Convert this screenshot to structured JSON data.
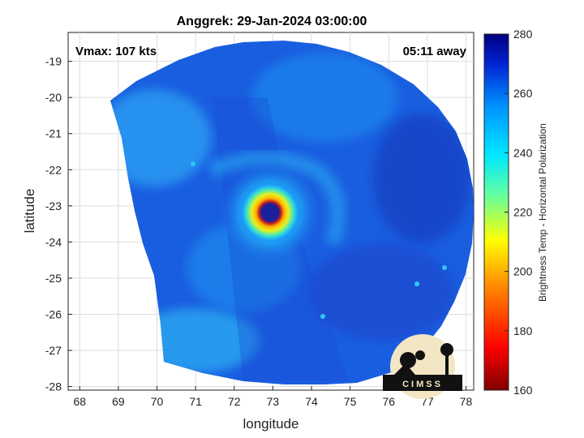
{
  "title": "Anggrek: 29-Jan-2024 03:00:00",
  "vmax_label": "Vmax: 107 kts",
  "time_label": "05:11 away",
  "logo_text": "CIMSS",
  "colors": {
    "cold_core": "#1a1f9a",
    "background_field": "#1450d8",
    "ring": "#22d0e0"
  },
  "chart_data": {
    "type": "heatmap",
    "xlabel": "longitude",
    "ylabel": "latitude",
    "xlim": [
      67.7,
      78.2
    ],
    "ylim": [
      -28.1,
      -18.2
    ],
    "xticks": [
      68,
      69,
      70,
      71,
      72,
      73,
      74,
      75,
      76,
      77,
      78
    ],
    "yticks": [
      -19,
      -20,
      -21,
      -22,
      -23,
      -24,
      -25,
      -26,
      -27,
      -28
    ],
    "grid": true,
    "storm_center": {
      "lon": 73.0,
      "lat": -23.2
    },
    "colorbar": {
      "label": "Brightness Temp - Horizontal Polarization",
      "range": [
        160,
        280
      ],
      "ticks": [
        160,
        180,
        200,
        220,
        240,
        260,
        280
      ],
      "colormap": "jet"
    }
  }
}
